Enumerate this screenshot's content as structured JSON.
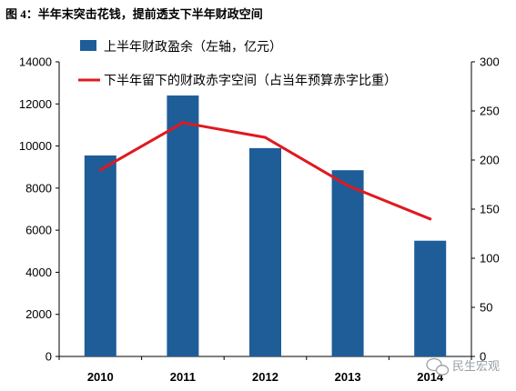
{
  "chart_data": {
    "type": "bar",
    "title": "图 4：半年末突击花钱，提前透支下半年财政空间",
    "categories": [
      "2010",
      "2011",
      "2012",
      "2013",
      "2014"
    ],
    "series": [
      {
        "name": "上半年财政盈余（左轴，亿元）",
        "type": "bar",
        "axis": "left",
        "color": "#1f5d99",
        "values": [
          9550,
          12400,
          9900,
          8850,
          5500
        ]
      },
      {
        "name": "下半年留下的财政赤字空间（占当年预算赤字比重）",
        "type": "line",
        "axis": "right",
        "color": "#e0191f",
        "values": [
          190,
          238,
          223,
          174,
          140
        ]
      }
    ],
    "y_left": {
      "min": 0,
      "max": 14000,
      "ticks": [
        0,
        2000,
        4000,
        6000,
        8000,
        10000,
        12000,
        14000
      ]
    },
    "y_right": {
      "min": 0,
      "max": 300,
      "ticks": [
        0,
        50,
        100,
        150,
        200,
        250,
        300
      ]
    },
    "grid": false,
    "legend": "top-left"
  },
  "watermark": {
    "text": "民生宏观",
    "icon": "wechat-icon"
  }
}
